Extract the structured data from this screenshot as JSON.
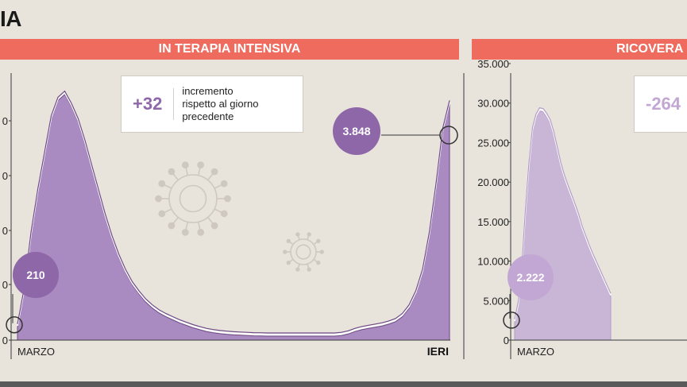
{
  "heading": "IA",
  "panels": [
    {
      "title": "IN TERAPIA INTENSIVA",
      "callout_value": "+32",
      "callout_text": [
        "incremento",
        "rispetto al giorno",
        "precedente"
      ],
      "start_label": "210",
      "end_label": "3.848",
      "x_start": "MARZO",
      "x_end": "IERI"
    },
    {
      "title": "RICOVERA",
      "callout_value": "-264",
      "start_label": "2.222",
      "x_start": "MARZO"
    }
  ],
  "chart_data": [
    {
      "type": "area",
      "title": "IN TERAPIA INTENSIVA",
      "x_labels": [
        "MARZO",
        "IERI"
      ],
      "y_ticks": [
        "0",
        "0",
        "0",
        "0",
        "0"
      ],
      "ylim": [
        0,
        4500
      ],
      "values": [
        210,
        800,
        1700,
        2400,
        3000,
        3600,
        3900,
        4000,
        3800,
        3550,
        3200,
        2800,
        2400,
        2000,
        1650,
        1350,
        1100,
        900,
        750,
        620,
        520,
        440,
        380,
        330,
        280,
        240,
        200,
        170,
        140,
        120,
        105,
        95,
        85,
        80,
        75,
        70,
        68,
        65,
        65,
        65,
        65,
        65,
        65,
        65,
        65,
        65,
        65,
        65,
        75,
        100,
        140,
        170,
        190,
        210,
        230,
        260,
        300,
        380,
        520,
        750,
        1100,
        1700,
        2500,
        3400,
        3848
      ],
      "colors": {
        "fill": "#a98ac1",
        "line": "#ffffff",
        "edge": "#6e4a88"
      }
    },
    {
      "type": "area",
      "title": "RICOVERA",
      "x_labels": [
        "MARZO"
      ],
      "y_ticks": [
        "0",
        "5.000",
        "10.000",
        "15.000",
        "20.000",
        "25.000",
        "30.000",
        "35.000"
      ],
      "ylim": [
        0,
        35000
      ],
      "values": [
        2222,
        4500,
        9000,
        16000,
        22000,
        26500,
        28200,
        29000,
        28900,
        28300,
        27500,
        26000,
        24000,
        22000,
        20500,
        19200,
        18000,
        16800,
        15500,
        14000,
        12800,
        11600,
        10500,
        9500,
        8500,
        7500,
        6500,
        5500
      ],
      "colors": {
        "fill": "#c9b6d6",
        "line": "#ffffff",
        "edge": "#b39cc8"
      }
    }
  ]
}
